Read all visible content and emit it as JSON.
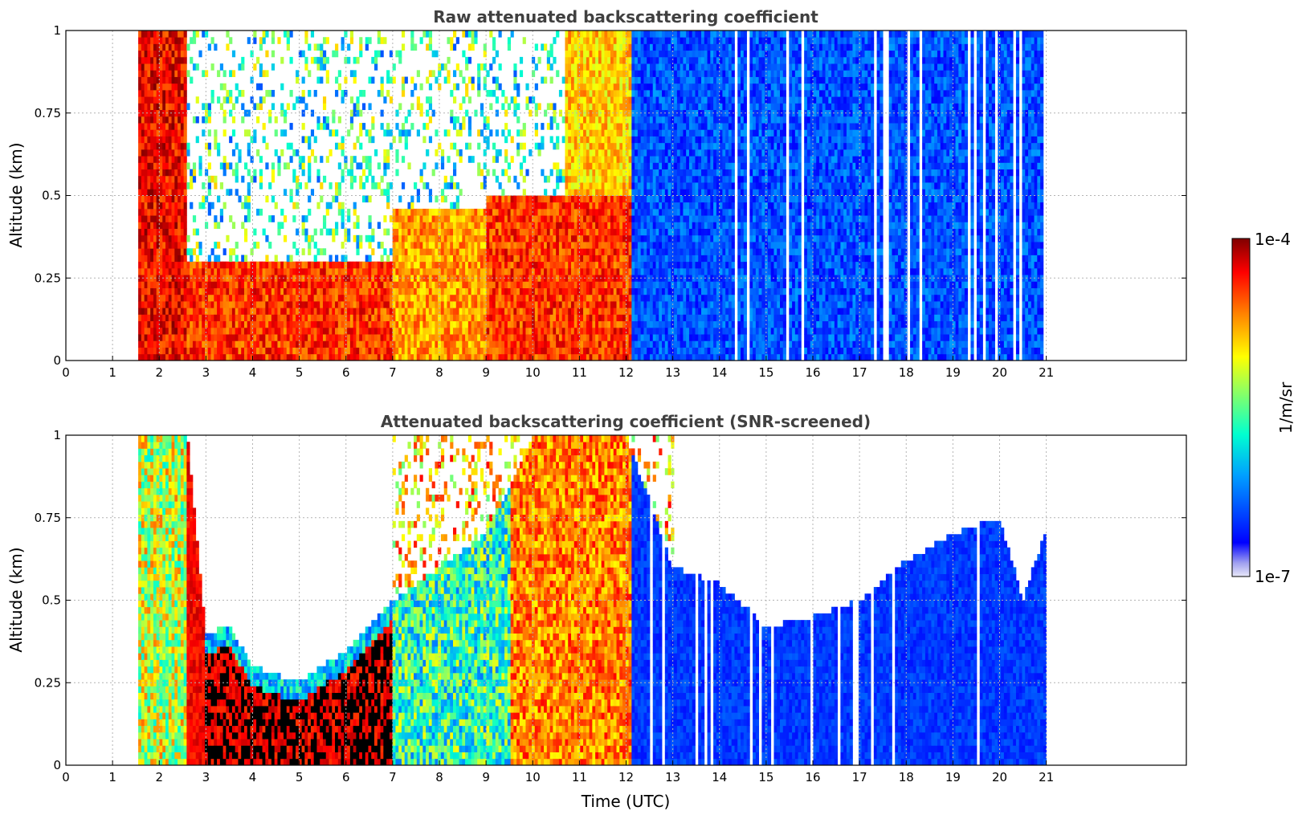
{
  "chart_data": [
    {
      "type": "heatmap",
      "title": "Raw attenuated backscattering coefficient",
      "xlabel": "",
      "ylabel": "Altitude (km)",
      "xlim": [
        0,
        24
      ],
      "ylim": [
        0,
        1
      ],
      "xticks": [
        "0",
        "1",
        "2",
        "3",
        "4",
        "5",
        "6",
        "7",
        "8",
        "9",
        "10",
        "11",
        "12",
        "13",
        "14",
        "15",
        "16",
        "17",
        "18",
        "19",
        "20",
        "21"
      ],
      "yticks": [
        "0",
        "0.25",
        "0.5",
        "0.75",
        "1"
      ],
      "grid": true,
      "data_start": 1.55,
      "data_end": 21.0,
      "colormap": "jet",
      "clim": [
        "1e-7",
        "1e-4"
      ],
      "features": [
        {
          "from": 1.55,
          "to": 2.6,
          "top": 1.0,
          "level": 0.9
        },
        {
          "from": 2.6,
          "to": 7.0,
          "top": 0.3,
          "level": 0.85
        },
        {
          "from": 7.0,
          "to": 9.0,
          "top": 0.45,
          "level": 0.75
        },
        {
          "from": 9.0,
          "to": 12.1,
          "top": 0.5,
          "level": 0.85
        },
        {
          "from": 10.7,
          "to": 12.1,
          "top": 1.0,
          "level": 0.7
        },
        {
          "from": 12.1,
          "to": 21.0,
          "top": 1.0,
          "level": 0.2
        }
      ]
    },
    {
      "type": "heatmap",
      "title": "Attenuated backscattering coefficient (SNR-screened)",
      "xlabel": "Time (UTC)",
      "ylabel": "Altitude (km)",
      "xlim": [
        0,
        24
      ],
      "ylim": [
        0,
        1
      ],
      "xticks": [
        "0",
        "1",
        "2",
        "3",
        "4",
        "5",
        "6",
        "7",
        "8",
        "9",
        "10",
        "11",
        "12",
        "13",
        "14",
        "15",
        "16",
        "17",
        "18",
        "19",
        "20",
        "21"
      ],
      "yticks": [
        "0",
        "0.25",
        "0.5",
        "0.75",
        "1"
      ],
      "grid": true,
      "data_start": 1.55,
      "data_end": 21.0,
      "colormap": "jet",
      "clim": [
        "1e-7",
        "1e-4"
      ],
      "boundary_layer_top": [
        [
          1.55,
          1.0
        ],
        [
          2.6,
          1.0
        ],
        [
          3.0,
          0.4
        ],
        [
          3.5,
          0.42
        ],
        [
          4.0,
          0.3
        ],
        [
          5.0,
          0.25
        ],
        [
          6.0,
          0.35
        ],
        [
          7.0,
          0.5
        ],
        [
          8.0,
          0.6
        ],
        [
          9.0,
          0.7
        ],
        [
          10.0,
          1.0
        ],
        [
          12.0,
          1.0
        ],
        [
          13.0,
          0.6
        ],
        [
          14.0,
          0.55
        ],
        [
          15.0,
          0.42
        ],
        [
          16.0,
          0.45
        ],
        [
          17.0,
          0.5
        ],
        [
          18.0,
          0.62
        ],
        [
          19.0,
          0.7
        ],
        [
          20.0,
          0.75
        ],
        [
          20.5,
          0.5
        ],
        [
          21.0,
          0.72
        ]
      ]
    }
  ],
  "colorbar": {
    "label": "1/m/sr",
    "max_label": "1e-4",
    "min_label": "1e-7"
  }
}
